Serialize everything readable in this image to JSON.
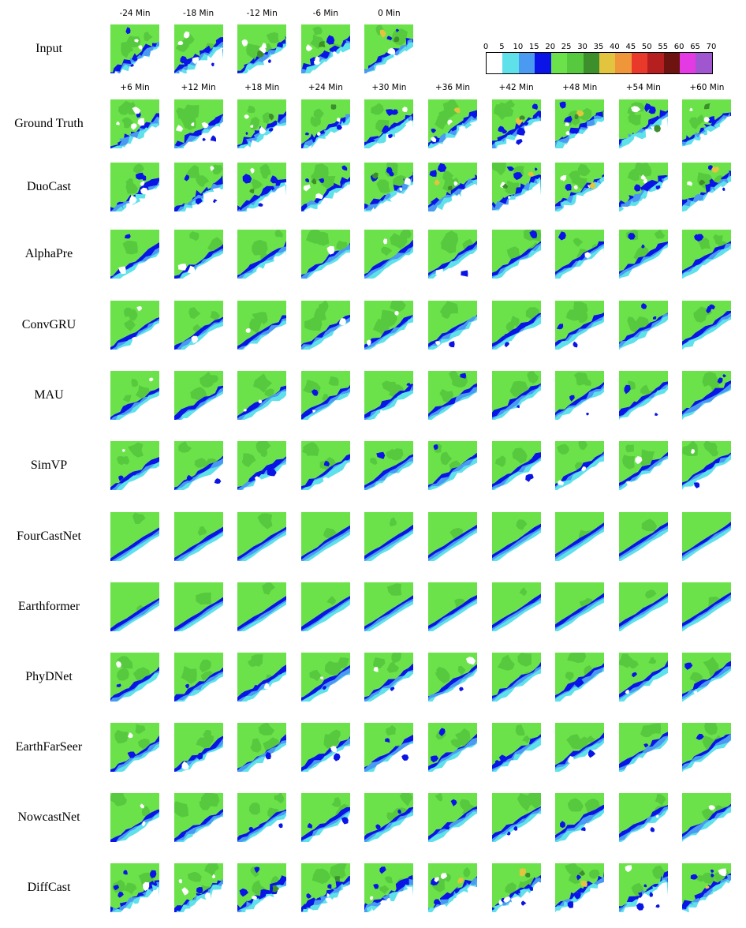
{
  "figure": {
    "input_times": [
      "-24 Min",
      "-18 Min",
      "-12 Min",
      "-6 Min",
      "0 Min"
    ],
    "forecast_times": [
      "+6 Min",
      "+12 Min",
      "+18 Min",
      "+24 Min",
      "+30 Min",
      "+36 Min",
      "+42 Min",
      "+48 Min",
      "+54 Min",
      "+60 Min"
    ],
    "rows": [
      {
        "label": "Input",
        "style": "noisy"
      },
      {
        "label": "Ground Truth",
        "style": "noisy"
      },
      {
        "label": "DuoCast",
        "style": "noisy"
      },
      {
        "label": "AlphaPre",
        "style": "medium"
      },
      {
        "label": "ConvGRU",
        "style": "medium"
      },
      {
        "label": "MAU",
        "style": "medium"
      },
      {
        "label": "SimVP",
        "style": "medium"
      },
      {
        "label": "FourCastNet",
        "style": "smooth"
      },
      {
        "label": "Earthformer",
        "style": "smooth"
      },
      {
        "label": "PhyDNet",
        "style": "medium"
      },
      {
        "label": "EarthFarSeer",
        "style": "medium"
      },
      {
        "label": "NowcastNet",
        "style": "medium"
      },
      {
        "label": "DiffCast",
        "style": "noisy"
      }
    ],
    "colorbar": {
      "ticks": [
        "0",
        "5",
        "10",
        "15",
        "20",
        "25",
        "30",
        "35",
        "40",
        "45",
        "50",
        "55",
        "60",
        "65",
        "70"
      ],
      "colors": [
        "#ffffff",
        "#5ee1e9",
        "#4a9af2",
        "#0a14e6",
        "#6be24a",
        "#56c93e",
        "#3c8f2a",
        "#e3c43e",
        "#f0963a",
        "#e8392a",
        "#b51f1f",
        "#6d1410",
        "#e43ae4",
        "#9f56cf"
      ]
    },
    "palette": {
      "white": "#ffffff",
      "cyan": "#5ee1e9",
      "lightblue": "#4a9af2",
      "blue": "#0a14e6",
      "green": "#6be24a",
      "midgreen": "#56c93e",
      "darkgreen": "#3c8f2a",
      "yellow": "#e3c43e"
    }
  }
}
